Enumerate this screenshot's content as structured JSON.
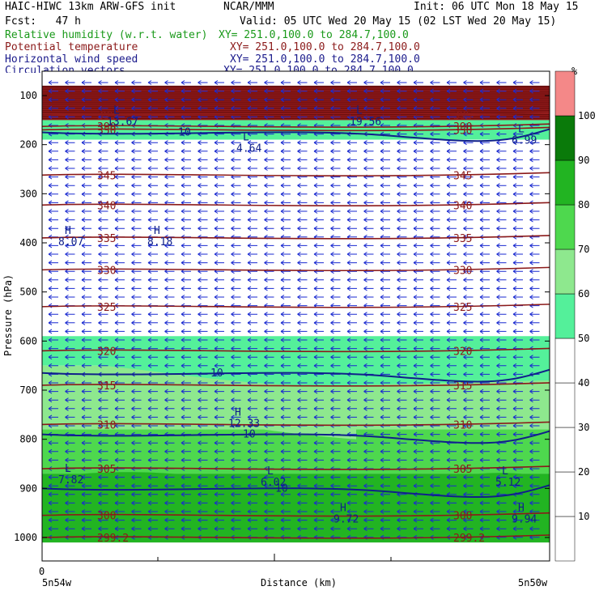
{
  "header": {
    "line1_left": "HAIC-HIWC 13km ARW-GFS init",
    "line1_mid": "NCAR/MMM",
    "line1_right": "Init: 06 UTC Mon 18 May 15",
    "line2_left": "Fcst:   47 h",
    "line2_right": "Valid: 05 UTC Wed 20 May 15 (02 LST Wed 20 May 15)",
    "fields": [
      {
        "name": "Relative humidity (w.r.t. water)",
        "xy": "XY= 251.0,100.0 to 284.7,100.0",
        "color": "#1a9a1a"
      },
      {
        "name": "Potential temperature",
        "xy": "XY= 251.0,100.0 to 284.7,100.0",
        "color": "#8b1a1a"
      },
      {
        "name": "Horizontal wind speed",
        "xy": "XY= 251.0,100.0 to 284.7,100.0",
        "color": "#1a1a8b"
      },
      {
        "name": "Circulation vectors",
        "xy": "XY= 251.0,100.0 to 284.7,100.0",
        "color": "#1a1a8b"
      }
    ]
  },
  "chart_data": {
    "type": "heatmap",
    "ylabel": "Pressure (hPa)",
    "xlabel": "Distance (km)",
    "x_ticks": {
      "start": "0",
      "left": "5n54w",
      "right": "5n50w"
    },
    "y_ticks": [
      100,
      200,
      300,
      400,
      500,
      600,
      700,
      800,
      900,
      1000
    ],
    "ylim": [
      1050,
      80
    ],
    "colorbar": {
      "unit": "%",
      "levels": [
        10,
        20,
        30,
        40,
        50,
        60,
        70,
        80,
        90,
        100
      ],
      "colors": [
        "#ffffff",
        "#ffffff",
        "#ffffff",
        "#ffffff",
        "#ffffff",
        "#54f09a",
        "#8ee88e",
        "#4ed84e",
        "#22b422",
        "#0a7a0a",
        "#f48888"
      ]
    },
    "rh_bands": [
      {
        "p_top": 80,
        "p_bot": 150,
        "class": "high"
      },
      {
        "p_top": 150,
        "p_bot": 190,
        "class": "moist"
      },
      {
        "p_top": 190,
        "p_bot": 590,
        "class": "dry"
      },
      {
        "p_top": 590,
        "p_bot": 650,
        "class": "rh60"
      },
      {
        "p_top": 650,
        "p_bot": 780,
        "class": "rh70"
      },
      {
        "p_top": 780,
        "p_bot": 870,
        "class": "rh80"
      },
      {
        "p_top": 870,
        "p_bot": 960,
        "class": "rh90"
      },
      {
        "p_top": 960,
        "p_bot": 1010,
        "class": "rh100"
      }
    ],
    "theta_lines": [
      {
        "label": "395",
        "p": 140
      },
      {
        "label": "390",
        "p": 163
      },
      {
        "label": "350",
        "p": 170
      },
      {
        "label": "345",
        "p": 262
      },
      {
        "label": "340",
        "p": 323
      },
      {
        "label": "335",
        "p": 390
      },
      {
        "label": "330",
        "p": 455
      },
      {
        "label": "325",
        "p": 530
      },
      {
        "label": "320",
        "p": 620
      },
      {
        "label": "315",
        "p": 690
      },
      {
        "label": "310",
        "p": 770
      },
      {
        "label": "305",
        "p": 860
      },
      {
        "label": "300",
        "p": 955
      },
      {
        "label": "299.2",
        "p": 1000
      }
    ],
    "wind_contours": [
      {
        "label": "10",
        "p": 175
      },
      {
        "label": "10",
        "p": 665
      },
      {
        "label": "10",
        "p": 790
      },
      {
        "label": "10",
        "p": 900
      }
    ],
    "annotations": [
      {
        "kind": "L",
        "value": "13.67",
        "p": 140
      },
      {
        "kind": "L",
        "value": "19.56",
        "p": 140
      },
      {
        "kind": "L",
        "value": "6.99",
        "p": 178
      },
      {
        "kind": "L",
        "value": "4.64",
        "p": 195
      },
      {
        "kind": "H",
        "value": "8.07",
        "p": 385
      },
      {
        "kind": "H",
        "value": "8.18",
        "p": 385
      },
      {
        "kind": "H",
        "value": "12.33",
        "p": 755
      },
      {
        "kind": "L",
        "value": "7.82",
        "p": 870
      },
      {
        "kind": "L",
        "value": "6.02",
        "p": 875
      },
      {
        "kind": "L",
        "value": "5.12",
        "p": 875
      },
      {
        "kind": "H",
        "value": "9.72",
        "p": 950
      },
      {
        "kind": "H",
        "value": "9.94",
        "p": 950
      }
    ]
  }
}
